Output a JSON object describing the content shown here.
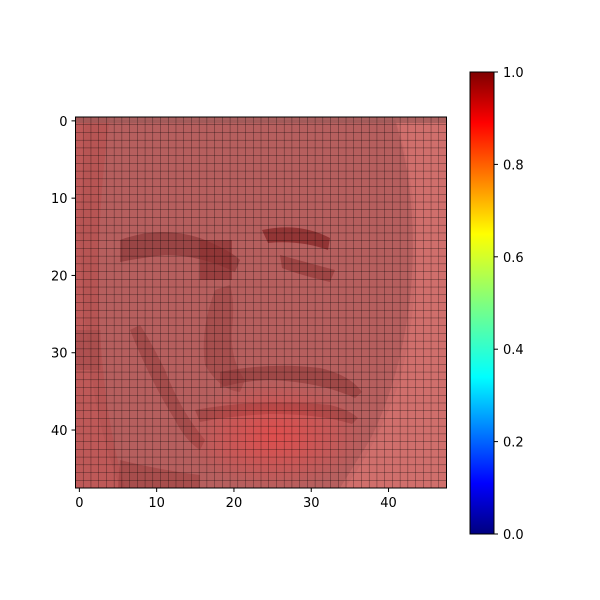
{
  "chart_data": {
    "type": "heatmap",
    "title": "",
    "xlabel": "",
    "ylabel": "",
    "image_size": [
      48,
      48
    ],
    "xlim": [
      -0.5,
      47.5
    ],
    "ylim": [
      47.5,
      -0.5
    ],
    "x_ticks": [
      0,
      10,
      20,
      30,
      40
    ],
    "x_tick_labels": [
      "0",
      "10",
      "20",
      "30",
      "40"
    ],
    "y_ticks": [
      0,
      10,
      20,
      30,
      40
    ],
    "y_tick_labels": [
      "0",
      "10",
      "20",
      "30",
      "40"
    ],
    "grid": true,
    "colormap": "jet",
    "background_image": "grayscale face, 48x48",
    "overlay_value_range": [
      0.85,
      1.0
    ],
    "colorbar": {
      "range": [
        0.0,
        1.0
      ],
      "ticks": [
        0.0,
        0.2,
        0.4,
        0.6,
        0.8,
        1.0
      ],
      "tick_labels": [
        "0.0",
        "0.2",
        "0.4",
        "0.6",
        "0.8",
        "1.0"
      ],
      "placement": "right"
    }
  },
  "colors": {
    "axis": "#000000",
    "grid": "#000000",
    "jet": [
      "#00007f",
      "#0000ff",
      "#007fff",
      "#00ffff",
      "#7fff7f",
      "#ffff00",
      "#ff7f00",
      "#ff0000",
      "#7f0000"
    ]
  }
}
